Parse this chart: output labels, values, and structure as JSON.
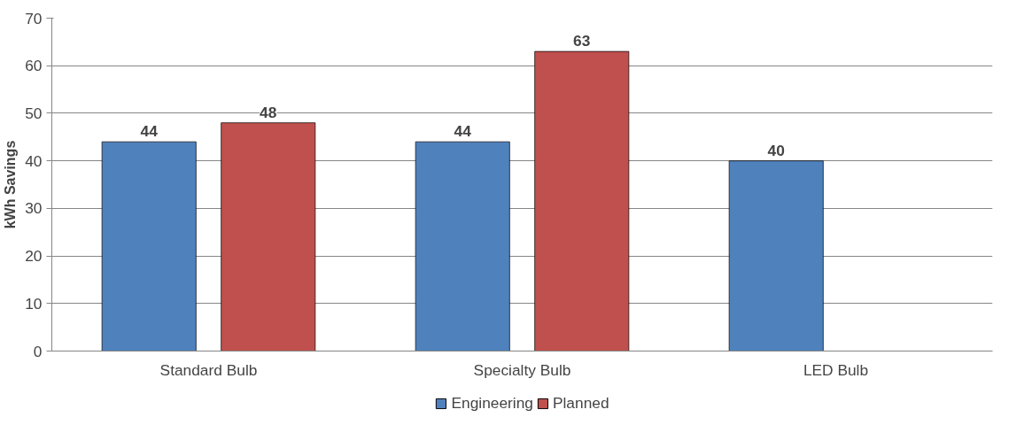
{
  "chart_data": {
    "type": "bar",
    "ylabel": "kWh Savings",
    "categories": [
      "Standard Bulb",
      "Specialty Bulb",
      "LED Bulb"
    ],
    "series": [
      {
        "name": "Engineering",
        "color": "#4f81bd",
        "values": [
          44,
          44,
          40
        ]
      },
      {
        "name": "Planned",
        "color": "#c0504d",
        "values": [
          48,
          63,
          null
        ]
      }
    ],
    "ylim": [
      0,
      70
    ],
    "yticks": [
      0,
      10,
      20,
      30,
      40,
      50,
      60,
      70
    ],
    "grid": "y",
    "legend": "bottom",
    "data_labels": true
  }
}
